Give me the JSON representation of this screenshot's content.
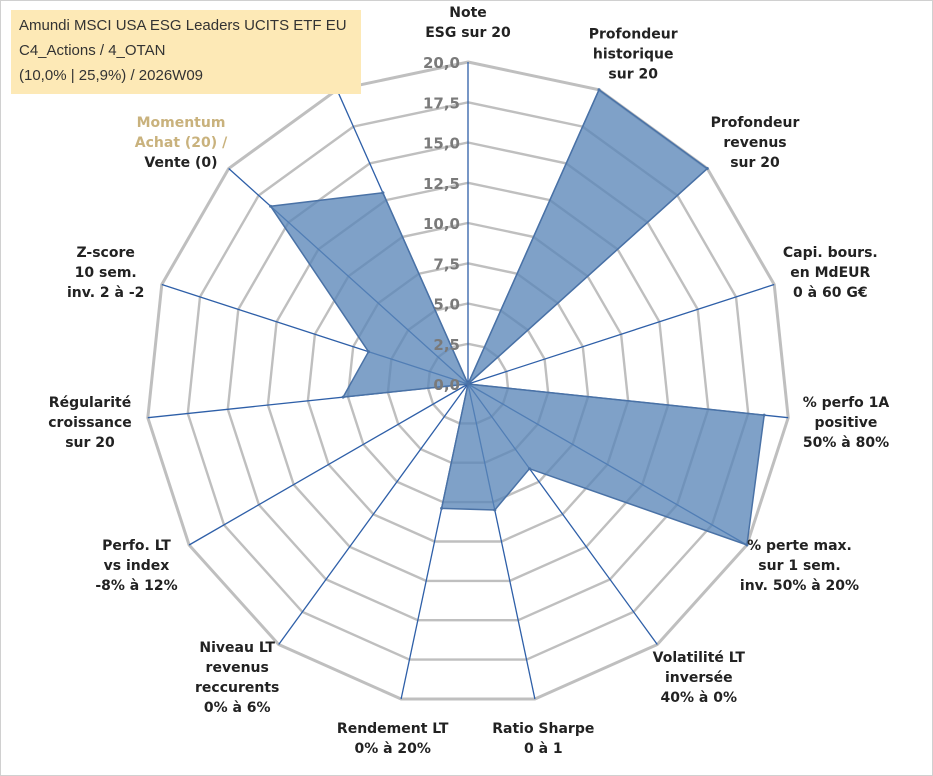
{
  "title_box": {
    "line1": "Amundi MSCI USA ESG Leaders UCITS ETF EU",
    "line2": "C4_Actions / 4_OTAN",
    "line3": "(10,0% | 25,9%) / 2026W09"
  },
  "colors": {
    "fill": "#5b86b8",
    "stroke": "#4a72a6",
    "spoke": "#2e5fa8",
    "grid": "#bfbfbf",
    "title_bg": "#fde9b6"
  },
  "chart_data": {
    "type": "radar",
    "title": "",
    "r_range": [
      0,
      20
    ],
    "tick_values": [
      "0,0",
      "2,5",
      "5,0",
      "7,5",
      "10,0",
      "12,5",
      "15,0",
      "17,5",
      "20,0"
    ],
    "grid": true,
    "axes": [
      {
        "label": [
          "Note",
          "ESG sur 20"
        ],
        "value": 0
      },
      {
        "label": [
          "Profondeur",
          "historique",
          "sur 20"
        ],
        "value": 20
      },
      {
        "label": [
          "Profondeur",
          "revenus",
          "sur 20"
        ],
        "value": 20
      },
      {
        "label": [
          "Capi. bours.",
          "en MdEUR",
          "0 à 60 G€"
        ],
        "value": 0
      },
      {
        "label": [
          "% perfo 1A",
          "positive",
          "50% à 80%"
        ],
        "value": 18.5
      },
      {
        "label": [
          "% perte max.",
          "sur 1 sem.",
          "inv. 50% à 20%"
        ],
        "value": 20
      },
      {
        "label": [
          "Volatilité LT",
          "inversée",
          "40% à 0%"
        ],
        "value": 6.5
      },
      {
        "label": [
          "Ratio Sharpe",
          "0 à 1"
        ],
        "value": 8
      },
      {
        "label": [
          "Rendement LT",
          "0% à 20%"
        ],
        "value": 7.9
      },
      {
        "label": [
          "Niveau LT",
          "revenus",
          "reccurents",
          "0% à 6%"
        ],
        "value": 0
      },
      {
        "label": [
          "Perfo. LT",
          "vs index",
          "-8% à 12%"
        ],
        "value": 0
      },
      {
        "label": [
          "Régularité",
          "croissance",
          "sur 20"
        ],
        "value": 7.8
      },
      {
        "label": [
          "Z-score",
          "10 sem.",
          "inv. 2 à -2"
        ],
        "value": 6.5
      },
      {
        "label": [
          "Momentum",
          "Achat (20) /",
          "Vente (0)"
        ],
        "value": 16.5,
        "faded_lines": 2
      },
      {
        "label": [],
        "value": 13
      }
    ]
  }
}
